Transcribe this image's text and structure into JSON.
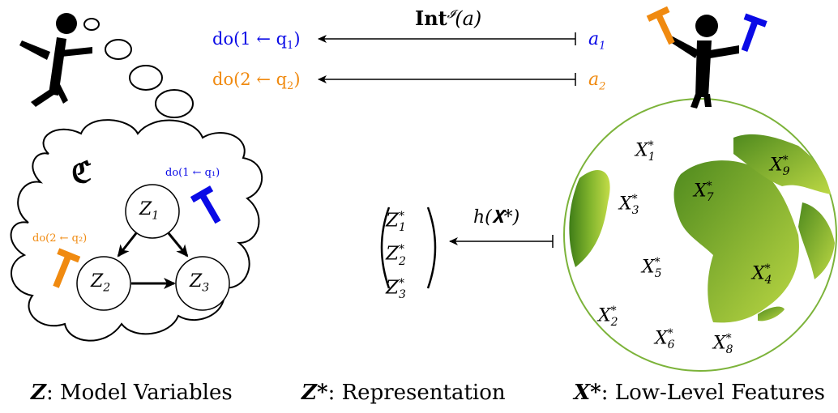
{
  "top_arrow_label": {
    "bold": "Int",
    "sup": "𝓘",
    "arg": "(a)"
  },
  "top_arrows": [
    {
      "left_label": "do(1 ← q",
      "left_sub": "1",
      "left_tail": ")",
      "right_label": "a",
      "right_sub": "1",
      "color": "#0a0ae6"
    },
    {
      "left_label": "do(2 ← q",
      "left_sub": "2",
      "left_tail": ")",
      "right_label": "a",
      "right_sub": "2",
      "color": "#f08a10"
    }
  ],
  "cloud": {
    "symbol": "ℭ",
    "intervention_blue": "do(1 ← q₁)",
    "intervention_orange": "do(2 ← q₂)",
    "nodes": [
      {
        "name": "Z",
        "sub": "1"
      },
      {
        "name": "Z",
        "sub": "2"
      },
      {
        "name": "Z",
        "sub": "3"
      }
    ]
  },
  "middle": {
    "arrow_label": "h(𝐗*)",
    "vector": [
      "Z",
      "Z",
      "Z"
    ],
    "vector_subs": [
      "1",
      "2",
      "3"
    ],
    "vector_sup": "*"
  },
  "globe": {
    "labels": [
      {
        "name": "X",
        "sub": "1",
        "sup": "*"
      },
      {
        "name": "X",
        "sub": "9",
        "sup": "*"
      },
      {
        "name": "X",
        "sub": "7",
        "sup": "*"
      },
      {
        "name": "X",
        "sub": "3",
        "sup": "*"
      },
      {
        "name": "X",
        "sub": "5",
        "sup": "*"
      },
      {
        "name": "X",
        "sub": "4",
        "sup": "*"
      },
      {
        "name": "X",
        "sub": "2",
        "sup": "*"
      },
      {
        "name": "X",
        "sub": "6",
        "sup": "*"
      },
      {
        "name": "X",
        "sub": "8",
        "sup": "*"
      }
    ],
    "colors": {
      "land_dark": "#4c8a1c",
      "land_light": "#b8d640",
      "outline": "#7cb33a"
    }
  },
  "captions": [
    {
      "symbol": "Z",
      "text": ": Model Variables"
    },
    {
      "symbol": "Z*",
      "text": ": Representation"
    },
    {
      "symbol": "X*",
      "text": ": Low-Level Features"
    }
  ],
  "colors": {
    "blue": "#0a0ae6",
    "orange": "#f08a10"
  }
}
